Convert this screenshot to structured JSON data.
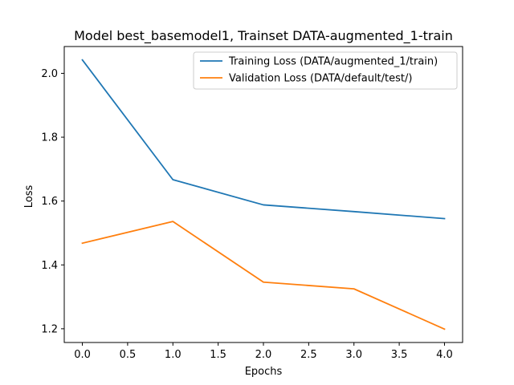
{
  "chart_data": {
    "type": "line",
    "title": "Model best_basemodel1, Trainset DATA-augmented_1-train",
    "xlabel": "Epochs",
    "ylabel": "Loss",
    "x": [
      0,
      1,
      2,
      3,
      4
    ],
    "xlim": [
      -0.2,
      4.2
    ],
    "ylim": [
      1.157,
      2.084
    ],
    "xticks": [
      0.0,
      0.5,
      1.0,
      1.5,
      2.0,
      2.5,
      3.0,
      3.5,
      4.0
    ],
    "xtick_labels": [
      "0.0",
      "0.5",
      "1.0",
      "1.5",
      "2.0",
      "2.5",
      "3.0",
      "3.5",
      "4.0"
    ],
    "yticks": [
      1.2,
      1.4,
      1.6,
      1.8,
      2.0
    ],
    "ytick_labels": [
      "1.2",
      "1.4",
      "1.6",
      "1.8",
      "2.0"
    ],
    "grid": false,
    "legend_position": "top-right",
    "series": [
      {
        "name": "Training Loss (DATA/augmented_1/train)",
        "color": "#1f77b4",
        "values": [
          2.042,
          1.667,
          1.588,
          1.567,
          1.545
        ]
      },
      {
        "name": "Validation Loss (DATA/default/test/)",
        "color": "#ff7f0e",
        "values": [
          1.468,
          1.536,
          1.346,
          1.325,
          1.199
        ]
      }
    ]
  }
}
